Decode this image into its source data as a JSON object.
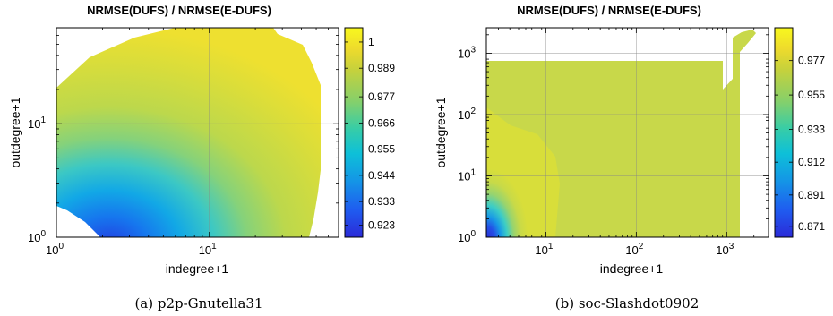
{
  "chart_data": [
    {
      "type": "heatmap",
      "title": "NRMSE(DUFS) / NRMSE(E-DUFS)",
      "xlabel": "indegree+1",
      "ylabel": "outdegree+1",
      "x_scale": "log",
      "y_scale": "log",
      "xlim": [
        1,
        70
      ],
      "ylim": [
        1,
        70
      ],
      "x_ticks": [
        {
          "value": 1,
          "base": "10",
          "exp": "0"
        },
        {
          "value": 10,
          "base": "10",
          "exp": "1"
        }
      ],
      "y_ticks": [
        {
          "value": 1,
          "base": "10",
          "exp": "0"
        },
        {
          "value": 10,
          "base": "10",
          "exp": "1"
        }
      ],
      "colorbar": {
        "min": 0.918,
        "max": 1.006,
        "ticks": [
          "1",
          "0.989",
          "0.977",
          "0.966",
          "0.955",
          "0.944",
          "0.933",
          "0.923"
        ],
        "tick_values": [
          1.0,
          0.989,
          0.977,
          0.966,
          0.955,
          0.944,
          0.933,
          0.923
        ]
      },
      "grid": true,
      "caption": "(a) p2p-Gnutella31"
    },
    {
      "type": "heatmap",
      "title": "NRMSE(DUFS) / NRMSE(E-DUFS)",
      "xlabel": "indegree+1",
      "ylabel": "outdegree+1",
      "x_scale": "log",
      "y_scale": "log",
      "xlim": [
        2.2,
        2900
      ],
      "ylim": [
        1,
        2600
      ],
      "x_ticks": [
        {
          "value": 10,
          "base": "10",
          "exp": "1"
        },
        {
          "value": 100,
          "base": "10",
          "exp": "2"
        },
        {
          "value": 1000,
          "base": "10",
          "exp": "3"
        }
      ],
      "y_ticks": [
        {
          "value": 1,
          "base": "10",
          "exp": "0"
        },
        {
          "value": 10,
          "base": "10",
          "exp": "1"
        },
        {
          "value": 100,
          "base": "10",
          "exp": "2"
        },
        {
          "value": 1000,
          "base": "10",
          "exp": "3"
        }
      ],
      "colorbar": {
        "min": 0.864,
        "max": 0.998,
        "ticks": [
          "0.977",
          "0.955",
          "0.933",
          "0.912",
          "0.891",
          "0.871"
        ],
        "tick_values": [
          0.977,
          0.955,
          0.933,
          0.912,
          0.891,
          0.871
        ]
      },
      "grid": true,
      "caption": "(b) soc-Slashdot0902"
    }
  ]
}
